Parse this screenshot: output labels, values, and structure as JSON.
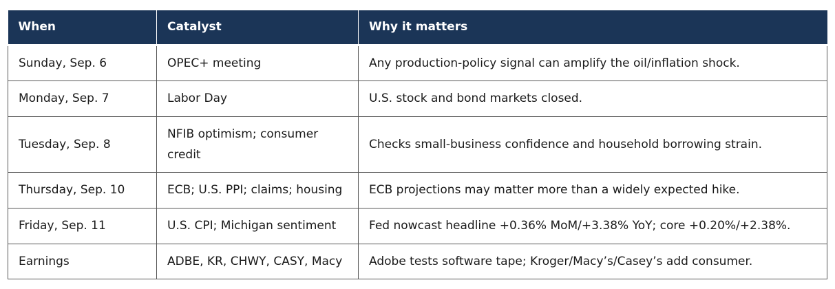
{
  "table": {
    "headers": [
      "When",
      "Catalyst",
      "Why it matters"
    ],
    "rows": [
      {
        "when": "Sunday, Sep. 6",
        "catalyst": "OPEC+ meeting",
        "why": "Any production-policy signal can amplify the oil/inflation shock."
      },
      {
        "when": "Monday, Sep. 7",
        "catalyst": "Labor Day",
        "why": "U.S. stock and bond markets closed."
      },
      {
        "when": "Tuesday, Sep. 8",
        "catalyst": "NFIB optimism; consumer credit",
        "why": "Checks small-business confidence and household borrowing strain."
      },
      {
        "when": "Thursday, Sep. 10",
        "catalyst": "ECB; U.S. PPI; claims; housing",
        "why": "ECB projections may matter more than a widely expected hike."
      },
      {
        "when": "Friday, Sep. 11",
        "catalyst": "U.S. CPI; Michigan sentiment",
        "why": "Fed nowcast headline +0.36% MoM/+3.38% YoY; core +0.20%/+2.38%."
      },
      {
        "when": "Earnings",
        "catalyst": "ADBE, KR, CHWY, CASY, Macy",
        "why": "Adobe tests software tape; Kroger/Macy’s/Casey’s add consumer."
      }
    ]
  },
  "colors": {
    "header_bg": "#1b3557",
    "header_text": "#ffffff",
    "border": "#555555"
  }
}
